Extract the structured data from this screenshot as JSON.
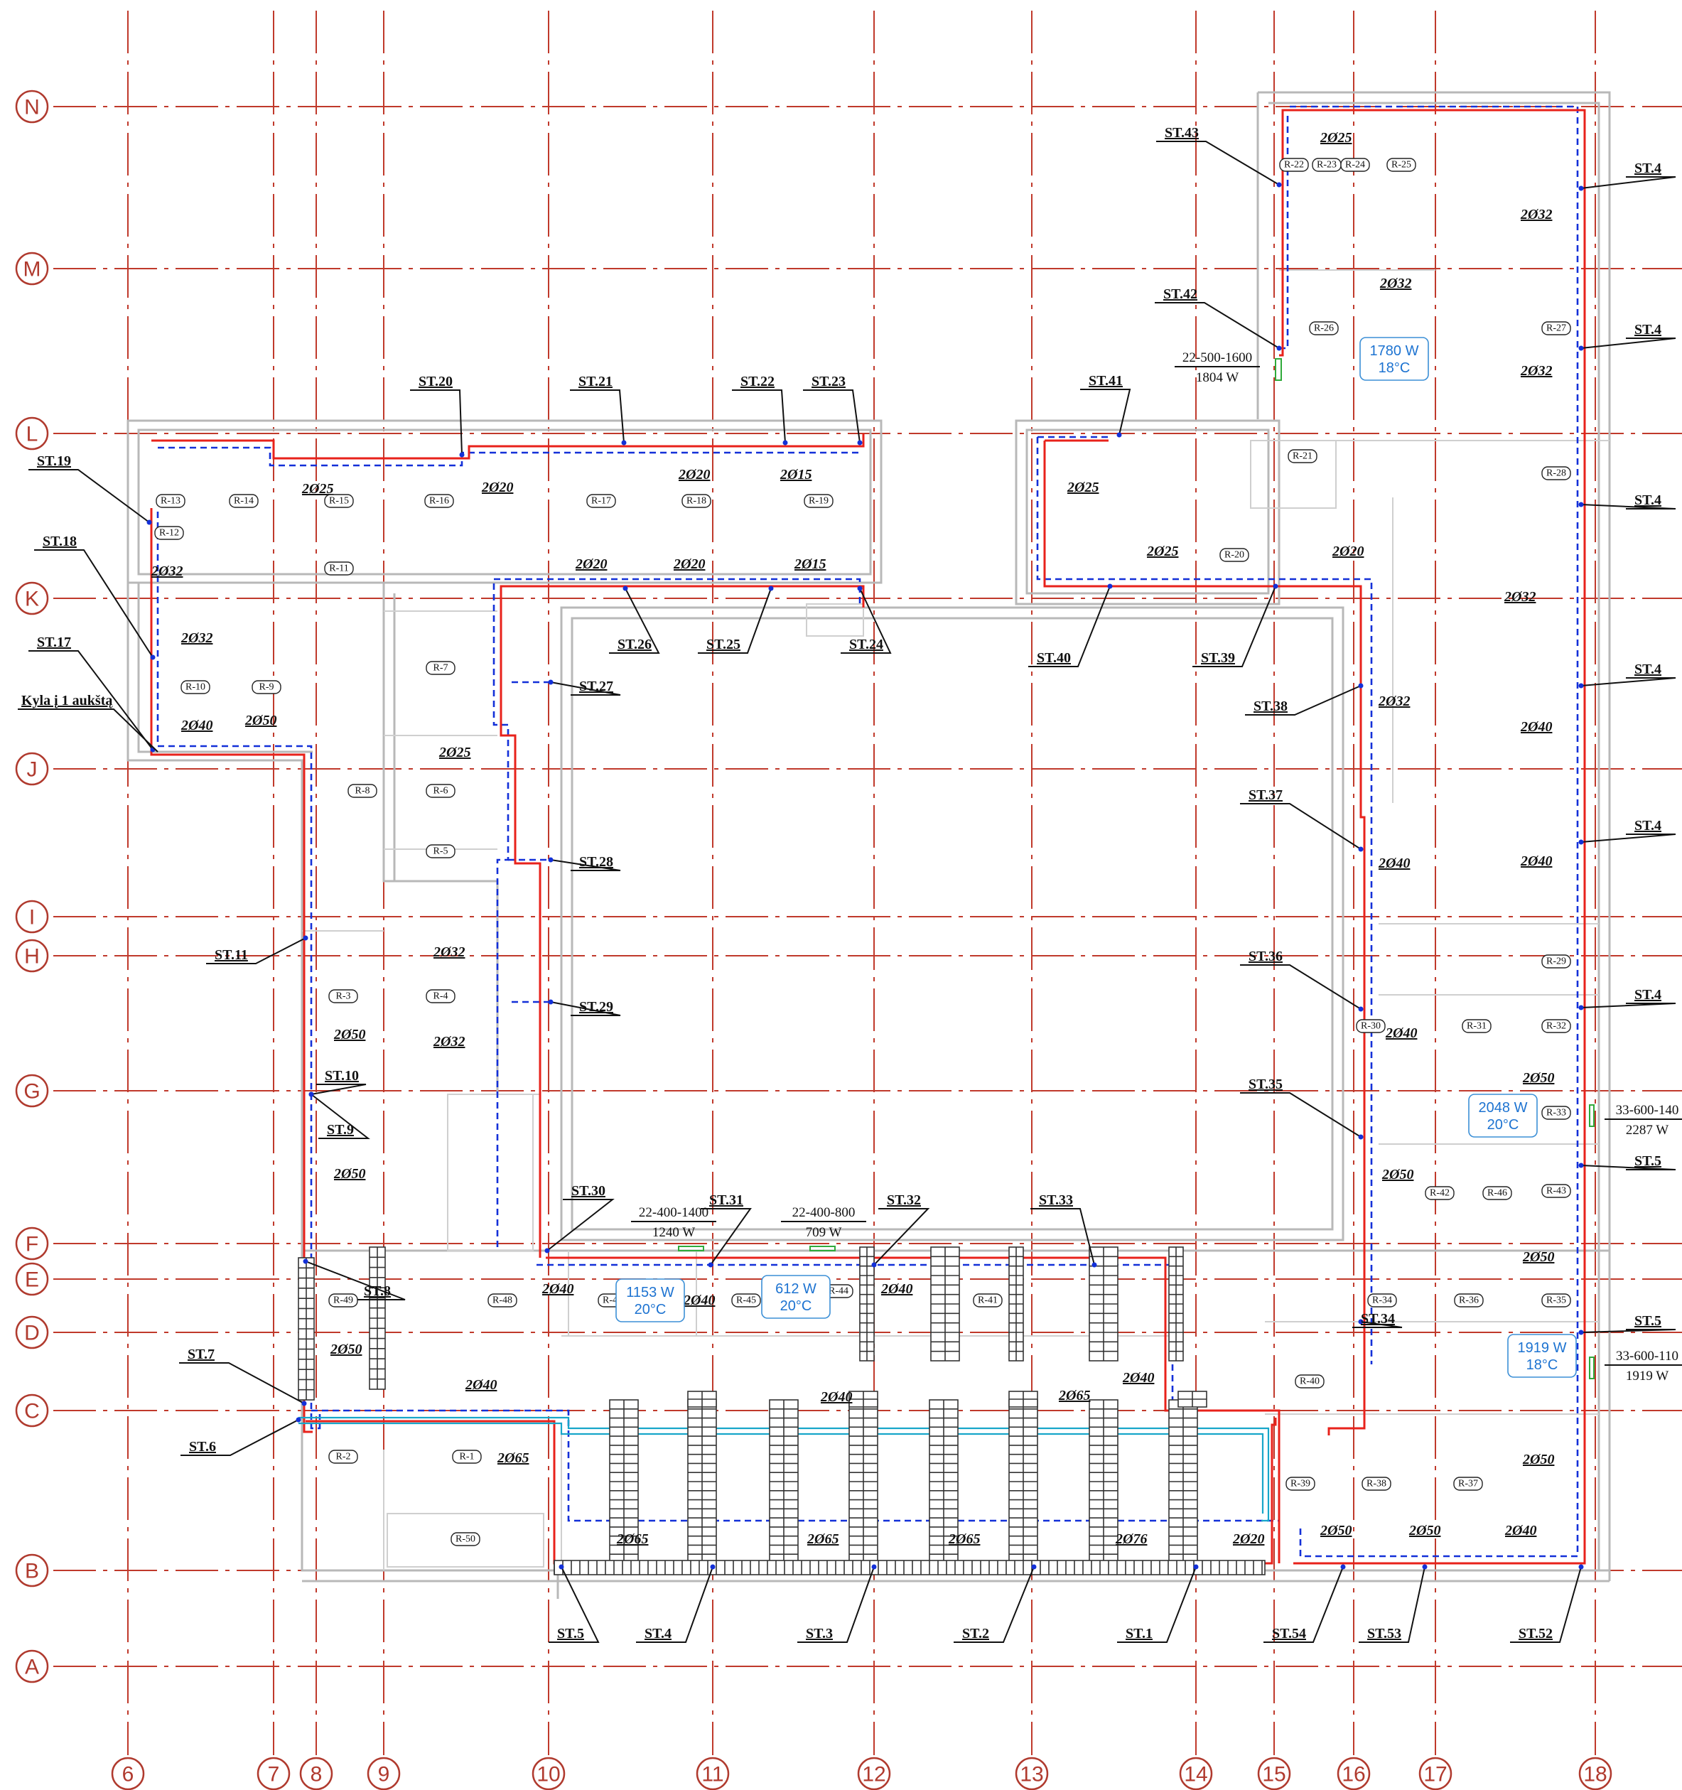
{
  "grid_rows": [
    {
      "label": "N"
    },
    {
      "label": "M"
    },
    {
      "label": "L"
    },
    {
      "label": "K"
    },
    {
      "label": "J"
    },
    {
      "label": "I"
    },
    {
      "label": "H"
    },
    {
      "label": "G"
    },
    {
      "label": "F"
    },
    {
      "label": "E"
    },
    {
      "label": "D"
    },
    {
      "label": "C"
    },
    {
      "label": "B"
    },
    {
      "label": "A"
    }
  ],
  "grid_cols": [
    {
      "label": "6"
    },
    {
      "label": "7"
    },
    {
      "label": "8"
    },
    {
      "label": "9"
    },
    {
      "label": "10"
    },
    {
      "label": "11"
    },
    {
      "label": "12"
    },
    {
      "label": "13"
    },
    {
      "label": "14"
    },
    {
      "label": "15"
    },
    {
      "label": "16"
    },
    {
      "label": "17"
    },
    {
      "label": "18"
    }
  ],
  "risers": [
    "ST.1",
    "ST.2",
    "ST.3",
    "ST.4",
    "ST.5",
    "ST.6",
    "ST.7",
    "ST.8",
    "ST.9",
    "ST.10",
    "ST.11",
    "ST.17",
    "ST.18",
    "ST.19",
    "ST.20",
    "ST.21",
    "ST.22",
    "ST.23",
    "ST.24",
    "ST.25",
    "ST.26",
    "ST.27",
    "ST.28",
    "ST.29",
    "ST.30",
    "ST.31",
    "ST.32",
    "ST.33",
    "ST.34",
    "ST.35",
    "ST.36",
    "ST.37",
    "ST.38",
    "ST.39",
    "ST.40",
    "ST.41",
    "ST.42",
    "ST.43",
    "ST.4",
    "ST.4",
    "ST.4",
    "ST.4",
    "ST.4",
    "ST.4",
    "ST.5",
    "ST.5",
    "ST.52",
    "ST.53",
    "ST.54"
  ],
  "pipes": [
    "2Ø25",
    "2Ø20",
    "2Ø20",
    "2Ø15",
    "2Ø32",
    "2Ø32",
    "2Ø40",
    "2Ø50",
    "2Ø20",
    "2Ø20",
    "2Ø15",
    "2Ø25",
    "2Ø32",
    "2Ø32",
    "2Ø50",
    "2Ø50",
    "2Ø50",
    "2Ø40",
    "2Ø40",
    "2Ø40",
    "2Ø40",
    "2Ø40",
    "2Ø40",
    "2Ø65",
    "2Ø65",
    "2Ø65",
    "2Ø65",
    "2Ø65",
    "2Ø76",
    "2Ø20",
    "2Ø25",
    "2Ø25",
    "2Ø20",
    "2Ø25",
    "2Ø32",
    "2Ø32",
    "2Ø32",
    "2Ø32",
    "2Ø32",
    "2Ø40",
    "2Ø40",
    "2Ø40",
    "2Ø40",
    "2Ø50",
    "2Ø50",
    "2Ø50",
    "2Ø50",
    "2Ø50",
    "2Ø50",
    "2Ø40"
  ],
  "rooms": [
    "R-1",
    "R-2",
    "R-3",
    "R-4",
    "R-5",
    "R-6",
    "R-7",
    "R-8",
    "R-9",
    "R-10",
    "R-11",
    "R-12",
    "R-13",
    "R-14",
    "R-15",
    "R-16",
    "R-17",
    "R-18",
    "R-19",
    "R-20",
    "R-21",
    "R-22",
    "R-23",
    "R-24",
    "R-25",
    "R-26",
    "R-27",
    "R-28",
    "R-29",
    "R-30",
    "R-31",
    "R-32",
    "R-33",
    "R-34",
    "R-35",
    "R-36",
    "R-37",
    "R-38",
    "R-39",
    "R-40",
    "R-41",
    "R-42",
    "R-43",
    "R-44",
    "R-45",
    "R-46",
    "R-47",
    "R-48",
    "R-49",
    "R-50"
  ],
  "heat_loads": [
    {
      "w": "1780 W",
      "t": "18°C"
    },
    {
      "w": "1153 W",
      "t": "20°C"
    },
    {
      "w": "612  W",
      "t": "20°C"
    },
    {
      "w": "2048 W",
      "t": "20°C"
    },
    {
      "w": "1919 W",
      "t": "18°C"
    }
  ],
  "radiators": [
    {
      "type": "22-500-1600",
      "power": "1804 W"
    },
    {
      "type": "22-400-1400",
      "power": "1240 W"
    },
    {
      "type": "22-400-800",
      "power": "709 W"
    },
    {
      "type": "33-600-140",
      "power": "2287 W"
    },
    {
      "type": "33-600-110",
      "power": "1919 W"
    }
  ],
  "notes": {
    "supply_from_floor1": "Kyla į 1 aukštą"
  },
  "colors": {
    "grid": "#c0392b",
    "supply": "#e8221b",
    "return": "#1330d8",
    "aux": "#17a6c9",
    "wall": "#b8b8b8"
  }
}
